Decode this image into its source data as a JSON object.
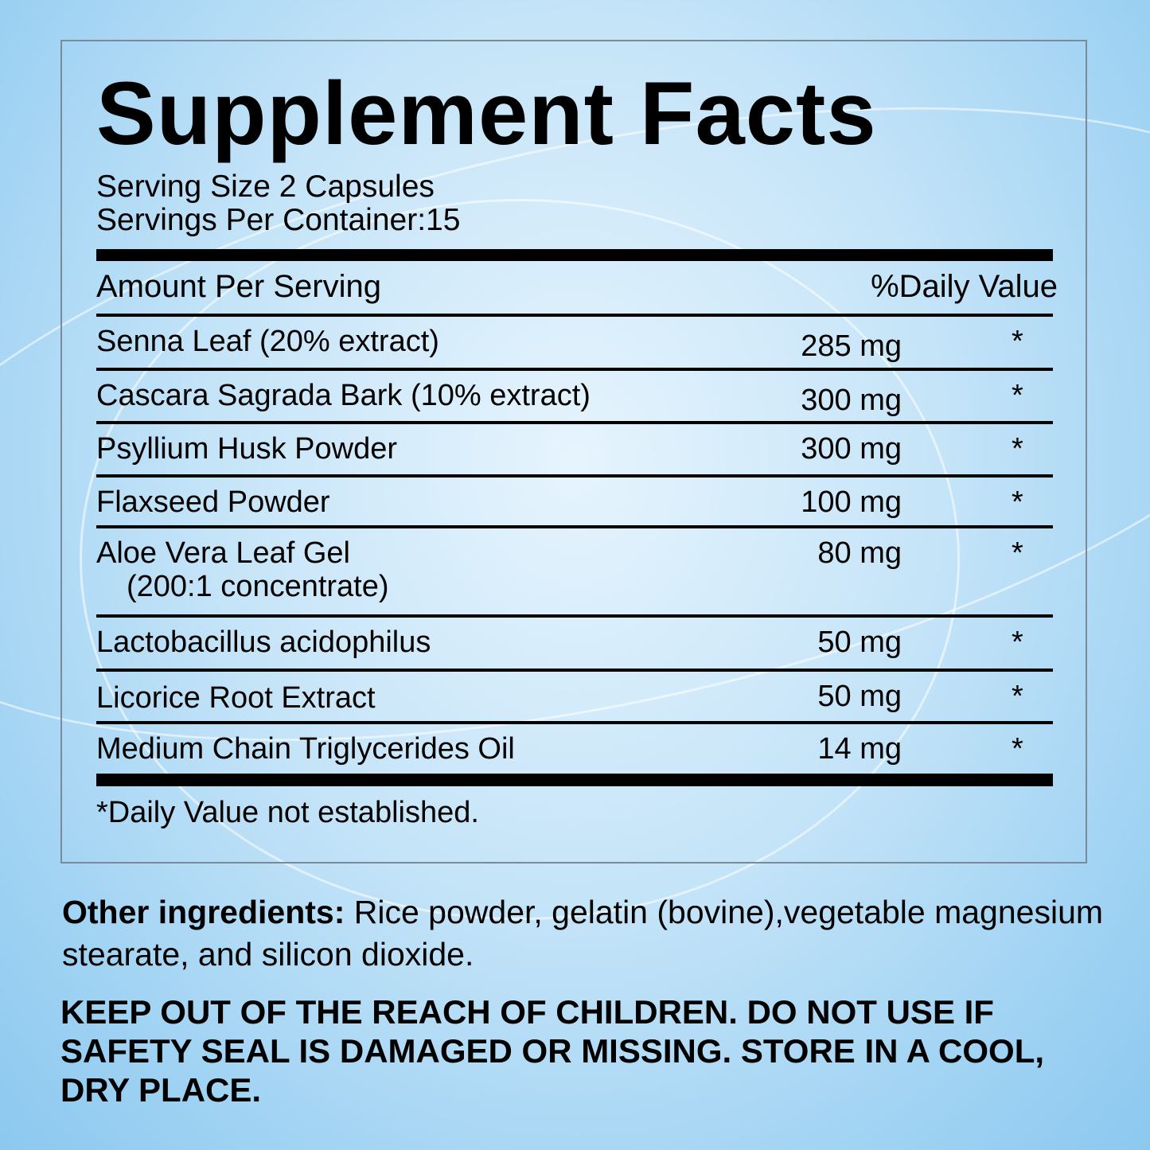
{
  "title": "Supplement Facts",
  "serving_size": "Serving Size 2 Capsules",
  "servings_per_container": "Servings Per Container:15",
  "header": {
    "amount": "Amount Per Serving",
    "daily_value": "%Daily Value"
  },
  "rows": [
    {
      "name": "Senna Leaf (20% extract)",
      "amount": "285 mg",
      "dv": "*"
    },
    {
      "name": "Cascara Sagrada Bark (10% extract)",
      "amount": "300 mg",
      "dv": "*"
    },
    {
      "name": "Psyllium Husk Powder",
      "amount": "300 mg",
      "dv": "*"
    },
    {
      "name": "Flaxseed Powder",
      "amount": "100 mg",
      "dv": "*"
    },
    {
      "name": "Aloe Vera Leaf Gel",
      "sub": "(200:1 concentrate)",
      "amount": "80 mg",
      "dv": "*"
    },
    {
      "name": "Lactobacillus acidophilus",
      "amount": "50 mg",
      "dv": "*"
    },
    {
      "name": "Licorice Root Extract",
      "amount": "50 mg",
      "dv": "*"
    },
    {
      "name": "Medium Chain Triglycerides Oil",
      "amount": "14 mg",
      "dv": "*"
    }
  ],
  "footnote": "*Daily Value not established.",
  "other_ingredients": {
    "label": "Other ingredients:",
    "text": " Rice powder, gelatin (bovine),vegetable magnesium stearate, and silicon dioxide."
  },
  "warning": "KEEP OUT OF THE REACH OF CHILDREN. DO NOT USE IF SAFETY SEAL IS DAMAGED OR MISSING. STORE IN A COOL, DRY PLACE.",
  "colors": {
    "background": "#c5e4f8",
    "text": "#000000",
    "border": "#7a8a98"
  }
}
